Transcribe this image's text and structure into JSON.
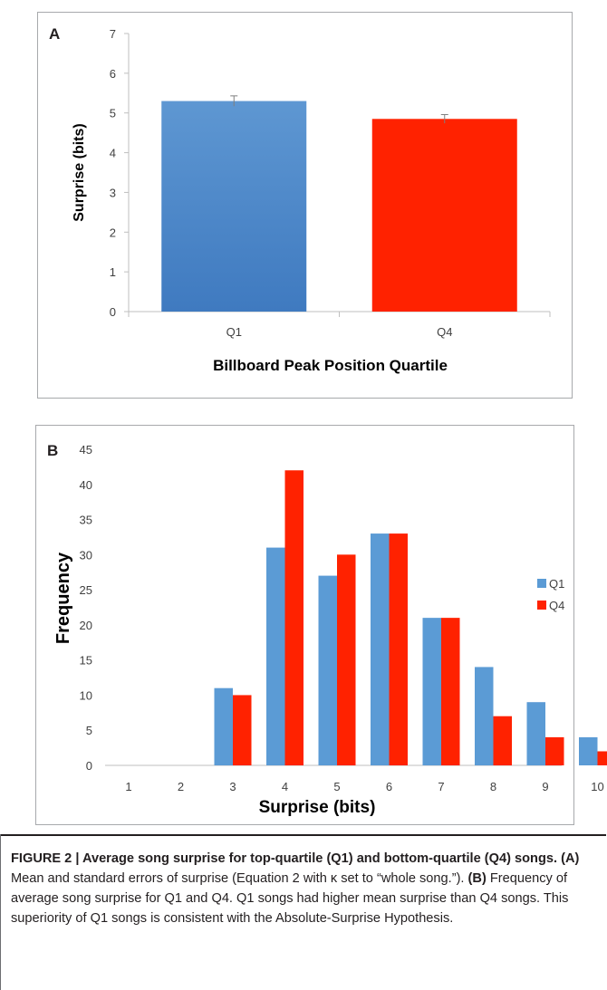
{
  "panel_a": {
    "letter": "A",
    "title": "",
    "xlabel": "Billboard Peak Position Quartile",
    "ylabel": "Surprise (bits)"
  },
  "panel_b": {
    "letter": "B",
    "title": "",
    "xlabel": "Surprise (bits)",
    "ylabel": "Frequency"
  },
  "chart_data": [
    {
      "type": "bar",
      "panel": "A",
      "title": "",
      "xlabel": "Billboard Peak Position Quartile",
      "ylabel": "Surprise (bits)",
      "categories": [
        "Q1",
        "Q4"
      ],
      "values": [
        5.3,
        4.85
      ],
      "error": [
        0.13,
        0.11
      ],
      "colors": [
        "#4a86c8",
        "#ff2200"
      ],
      "ylim": [
        0,
        7
      ],
      "yticks": [
        0,
        1,
        2,
        3,
        4,
        5,
        6,
        7
      ],
      "grid": false,
      "legend": "none"
    },
    {
      "type": "bar",
      "panel": "B",
      "title": "",
      "xlabel": "Surprise (bits)",
      "ylabel": "Frequency",
      "categories": [
        "1",
        "2",
        "3",
        "4",
        "5",
        "6",
        "7",
        "8",
        "9",
        "10"
      ],
      "series": [
        {
          "name": "Q1",
          "color": "#5b9bd5",
          "values": [
            0,
            0,
            11,
            31,
            27,
            33,
            21,
            14,
            9,
            4
          ]
        },
        {
          "name": "Q4",
          "color": "#ff2200",
          "values": [
            0,
            0,
            10,
            42,
            30,
            33,
            21,
            7,
            4,
            2
          ]
        }
      ],
      "ylim": [
        0,
        45
      ],
      "yticks": [
        0,
        5,
        10,
        15,
        20,
        25,
        30,
        35,
        40,
        45
      ],
      "grid": false,
      "legend": "right"
    }
  ],
  "caption": {
    "label": "FIGURE 2 | Average song surprise for top-quartile (Q1) and bottom-quartile (Q4) songs.",
    "part_a_label": "(A)",
    "part_a_text": "Mean and standard errors of surprise (Equation 2 with κ set to “whole song.”).",
    "part_b_label": "(B)",
    "part_b_text": "Frequency of average song surprise for Q1 and Q4. Q1 songs had higher mean surprise than Q4 songs. This superiority of Q1 songs is consistent with the Absolute-Surprise Hypothesis."
  }
}
